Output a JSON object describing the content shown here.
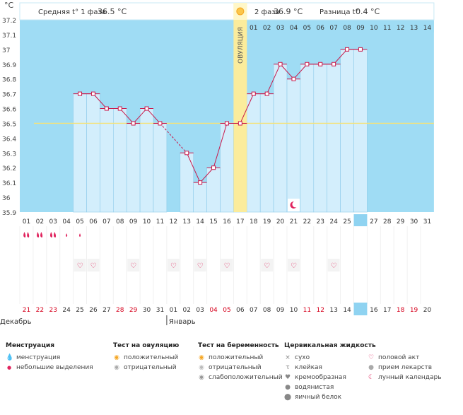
{
  "unit": "°C",
  "header": {
    "phase1_label": "Средняя t° 1 фаза",
    "phase1_value": "36.5 °C",
    "phase2_label": "2 фаза",
    "phase2_value": "36.9 °C",
    "diff_label": "Разница t°",
    "diff_value": "0.4 °C"
  },
  "ovulation_label": "ОВУЛЯЦИЯ",
  "phase2_days": [
    "01",
    "02",
    "03",
    "04",
    "05",
    "06",
    "07",
    "08",
    "09",
    "10",
    "11",
    "12",
    "13",
    "14"
  ],
  "cycle_days": [
    "01",
    "02",
    "03",
    "04",
    "05",
    "06",
    "07",
    "08",
    "09",
    "10",
    "11",
    "12",
    "13",
    "14",
    "15",
    "16",
    "17",
    "18",
    "19",
    "20",
    "21",
    "22",
    "23",
    "24",
    "25",
    "26",
    "27",
    "28",
    "29",
    "30",
    "31"
  ],
  "today_index": 25,
  "dates": [
    "21",
    "22",
    "23",
    "24",
    "25",
    "26",
    "27",
    "28",
    "29",
    "30",
    "31",
    "01",
    "02",
    "03",
    "04",
    "05",
    "06",
    "07",
    "08",
    "09",
    "10",
    "11",
    "12",
    "13",
    "14",
    "15",
    "16",
    "17",
    "18",
    "19",
    "20"
  ],
  "date_colors": [
    "#d6001c",
    "#d6001c",
    "#d6001c",
    "#333333",
    "#333333",
    "#333333",
    "#333333",
    "#d6001c",
    "#d6001c",
    "#333333",
    "#333333",
    "#333333",
    "#333333",
    "#333333",
    "#d6001c",
    "#d6001c",
    "#333333",
    "#333333",
    "#333333",
    "#333333",
    "#333333",
    "#d6001c",
    "#d6001c",
    "#333333",
    "#333333",
    "#333333",
    "#333333",
    "#333333",
    "#d6001c",
    "#d6001c",
    "#333333"
  ],
  "month_labels": [
    "Декабрь",
    "Январь"
  ],
  "menstruation_days": [
    1,
    2,
    3,
    4,
    5
  ],
  "menstruation_small_days": [
    4,
    5
  ],
  "intercourse_days": [
    5,
    6,
    9,
    12,
    14,
    16,
    19,
    21,
    24
  ],
  "moon_day": 21,
  "chart_data": {
    "type": "line",
    "ylabel": "°C",
    "ylim": [
      35.9,
      37.2
    ],
    "yticks": [
      "37.2",
      "37.1",
      "37",
      "36.9",
      "36.8",
      "36.7",
      "36.6",
      "36.5",
      "36.4",
      "36.3",
      "36.2",
      "36.1",
      "36",
      "35.9"
    ],
    "coverline": 36.5,
    "ovulation_day": 17,
    "x": [
      5,
      6,
      7,
      8,
      9,
      10,
      11,
      13,
      14,
      15,
      16,
      17,
      18,
      19,
      20,
      21,
      22,
      23,
      24,
      25,
      26
    ],
    "values": [
      36.7,
      36.7,
      36.6,
      36.6,
      36.5,
      36.6,
      36.5,
      36.3,
      36.1,
      36.2,
      36.5,
      36.5,
      36.7,
      36.7,
      36.9,
      36.8,
      36.9,
      36.9,
      36.9,
      37.0,
      37.0
    ],
    "gap_dashed": [
      11,
      13
    ]
  },
  "legend": {
    "menstruation": {
      "title": "Менструация",
      "items": [
        "менструация",
        "небольшие выделения"
      ]
    },
    "ovulation_test": {
      "title": "Тест на овуляцию",
      "items": [
        "положительный",
        "отрицательный"
      ]
    },
    "pregnancy_test": {
      "title": "Тест на беременность",
      "items": [
        "положительный",
        "отрицательный",
        "слабоположительный"
      ]
    },
    "cervical": {
      "title": "Цервикальная жидкость",
      "items": [
        "сухо",
        "клейкая",
        "кремообразная",
        "водянистая",
        "яичный белок"
      ]
    },
    "other": {
      "items": [
        "половой акт",
        "прием лекарств",
        "лунный календарь"
      ]
    }
  },
  "colors": {
    "sky": "#9fdcf4",
    "bar": "#d3eefc",
    "bar_edge": "#8ecbea",
    "line": "#c9184a",
    "ovu": "#fbec9c",
    "today": "#8fd3f1"
  }
}
